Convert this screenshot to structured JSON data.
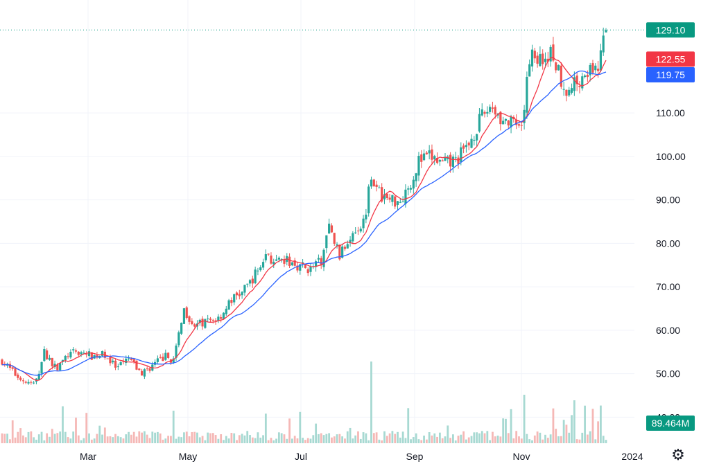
{
  "chart_data": {
    "type": "candlestick",
    "price_axis": {
      "ticks": [
        "40.00",
        "50.00",
        "60.00",
        "70.00",
        "80.00",
        "90.00",
        "100.00",
        "110.00"
      ],
      "range": [
        34,
        136
      ]
    },
    "time_axis": {
      "labels": [
        "Mar",
        "May",
        "Jul",
        "Sep",
        "Nov",
        "2024"
      ]
    },
    "last_price": {
      "value": "129.10",
      "color": "#089981"
    },
    "ma_fast": {
      "value": "122.55",
      "color": "#f23645"
    },
    "ma_slow": {
      "value": "119.75",
      "color": "#2962ff"
    },
    "volume": {
      "value": "89.464M",
      "color": "#089981"
    },
    "colors": {
      "up": "#26a69a",
      "down": "#ef5350",
      "volume_up": "#a7d9d2",
      "volume_down": "#f5b8b6",
      "grid": "#f0f3fa"
    },
    "close_path": [
      [
        0,
        53
      ],
      [
        0.02,
        50
      ],
      [
        0.04,
        48
      ],
      [
        0.055,
        47.5
      ],
      [
        0.07,
        55
      ],
      [
        0.09,
        51
      ],
      [
        0.11,
        54.5
      ],
      [
        0.13,
        55
      ],
      [
        0.15,
        54
      ],
      [
        0.17,
        54.5
      ],
      [
        0.19,
        51
      ],
      [
        0.21,
        53.5
      ],
      [
        0.23,
        50
      ],
      [
        0.25,
        52
      ],
      [
        0.27,
        54
      ],
      [
        0.285,
        53
      ],
      [
        0.3,
        65
      ],
      [
        0.32,
        61
      ],
      [
        0.34,
        62
      ],
      [
        0.36,
        63
      ],
      [
        0.38,
        67
      ],
      [
        0.4,
        69
      ],
      [
        0.42,
        73
      ],
      [
        0.44,
        78
      ],
      [
        0.45,
        75
      ],
      [
        0.47,
        76
      ],
      [
        0.49,
        75
      ],
      [
        0.51,
        74
      ],
      [
        0.53,
        76
      ],
      [
        0.54,
        84
      ],
      [
        0.56,
        77
      ],
      [
        0.58,
        83
      ],
      [
        0.6,
        85
      ],
      [
        0.61,
        97
      ],
      [
        0.62,
        92
      ],
      [
        0.64,
        90
      ],
      [
        0.66,
        90
      ],
      [
        0.68,
        95
      ],
      [
        0.69,
        99
      ],
      [
        0.71,
        100
      ],
      [
        0.73,
        98
      ],
      [
        0.75,
        99
      ],
      [
        0.77,
        102
      ],
      [
        0.79,
        108
      ],
      [
        0.81,
        112
      ],
      [
        0.83,
        108
      ],
      [
        0.85,
        107
      ],
      [
        0.86,
        105
      ],
      [
        0.875,
        125
      ],
      [
        0.89,
        122
      ],
      [
        0.91,
        124
      ],
      [
        0.92,
        120
      ],
      [
        0.935,
        115
      ],
      [
        0.95,
        117
      ],
      [
        0.97,
        120
      ],
      [
        0.98,
        118
      ],
      [
        0.99,
        123
      ],
      [
        1.0,
        129.1
      ]
    ]
  }
}
